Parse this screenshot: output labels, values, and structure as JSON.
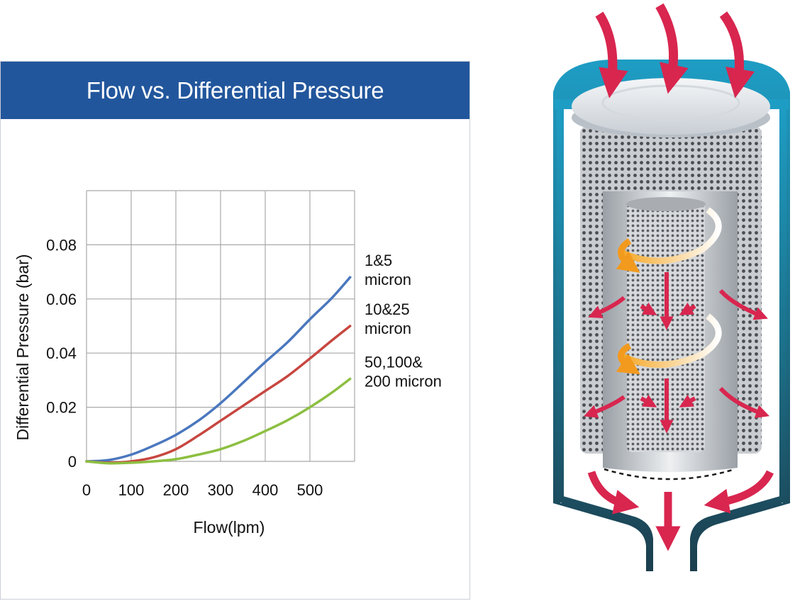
{
  "chart_data": {
    "type": "line",
    "title": "Flow vs. Differential Pressure",
    "xlabel": "Flow(lpm)",
    "ylabel": "Differential Pressure (bar)",
    "xlim": [
      0,
      600
    ],
    "ylim": [
      0,
      0.1
    ],
    "x_ticks": [
      "0",
      "100",
      "200",
      "300",
      "400",
      "500"
    ],
    "y_ticks": [
      "0",
      "0.02",
      "0.04",
      "0.06",
      "0.08"
    ],
    "grid": true,
    "series": [
      {
        "name": "1&5 micron",
        "label_lines": [
          "1&5",
          "micron"
        ],
        "color": "#4a77be",
        "x": [
          0,
          50,
          100,
          150,
          200,
          250,
          300,
          350,
          400,
          450,
          500,
          550,
          590
        ],
        "y": [
          0,
          0.0005,
          0.0025,
          0.0058,
          0.0098,
          0.015,
          0.0215,
          0.029,
          0.0367,
          0.044,
          0.0525,
          0.0605,
          0.068
        ]
      },
      {
        "name": "10&25 micron",
        "label_lines": [
          "10&25",
          "micron"
        ],
        "color": "#c7463f",
        "x": [
          0,
          50,
          100,
          150,
          200,
          250,
          300,
          350,
          400,
          450,
          500,
          550,
          590
        ],
        "y": [
          0,
          -0.0005,
          0,
          0.0015,
          0.0045,
          0.0095,
          0.015,
          0.0205,
          0.026,
          0.0315,
          0.038,
          0.0448,
          0.05
        ]
      },
      {
        "name": "50,100&200 micron",
        "label_lines": [
          "50,100&",
          "200 micron"
        ],
        "color": "#8cbf41",
        "x": [
          0,
          50,
          100,
          150,
          200,
          250,
          300,
          350,
          400,
          450,
          500,
          550,
          590
        ],
        "y": [
          0,
          -0.0007,
          -0.0005,
          0,
          0.0008,
          0.0025,
          0.0045,
          0.0075,
          0.0112,
          0.0152,
          0.02,
          0.0255,
          0.0305
        ]
      }
    ]
  },
  "colors": {
    "header": "#22569c",
    "housing_top": "#1e9dc4",
    "housing_bottom": "#1c3e4d",
    "flow_arrow": "#d8264f",
    "swirl_arrow": "#f29a1e"
  },
  "icons": {
    "filter_illustration": "basket-strainer-cutaway-icon"
  }
}
